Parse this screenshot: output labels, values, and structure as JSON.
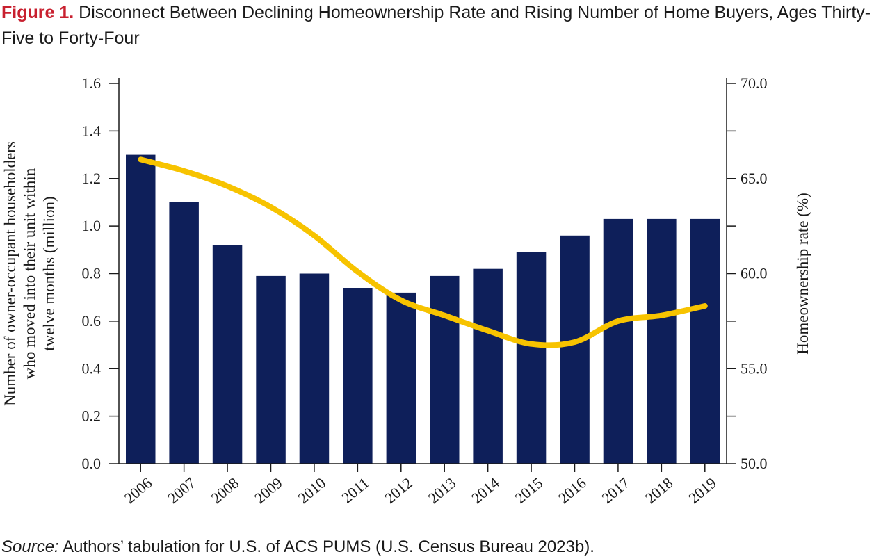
{
  "title": {
    "figure_label": "Figure 1.",
    "text": "Disconnect Between Declining Homeownership Rate and Rising Number of Home Buyers, Ages Thirty-Five to Forty-Four"
  },
  "source": {
    "label": "Source:",
    "text": "Authors’ tabulation for U.S. of ACS PUMS (U.S. Census Bureau 2023b)."
  },
  "colors": {
    "bars": "#0e1f5a",
    "line": "#f7c300",
    "axis": "#1a1a1a",
    "figure_label": "#c8202f"
  },
  "chart_data": {
    "type": "bar",
    "categories": [
      "2006",
      "2007",
      "2008",
      "2009",
      "2010",
      "2011",
      "2012",
      "2013",
      "2014",
      "2015",
      "2016",
      "2017",
      "2018",
      "2019"
    ],
    "series": [
      {
        "axis": "left",
        "chart": "bar",
        "values": [
          1.3,
          1.1,
          0.92,
          0.79,
          0.8,
          0.74,
          0.72,
          0.79,
          0.82,
          0.89,
          0.96,
          1.03,
          1.03,
          1.03
        ]
      },
      {
        "axis": "right",
        "chart": "line",
        "values": [
          66.0,
          65.4,
          64.6,
          63.5,
          62.0,
          60.1,
          58.6,
          57.8,
          57.0,
          56.3,
          56.4,
          57.5,
          57.8,
          58.3
        ]
      }
    ],
    "ylabel_left": "Number of owner-occupant householders who moved into their unit within twelve months (million)",
    "ylabel_left_lines": [
      "Number of owner-occupant householders",
      "who moved into their unit within",
      "twelve months (million)"
    ],
    "ylabel_right": "Homeownership rate (%)",
    "ylim_left": [
      0,
      1.6
    ],
    "ylim_right": [
      50,
      70
    ],
    "yticks_left": [
      "0.0",
      "0.2",
      "0.4",
      "0.6",
      "0.8",
      "1.0",
      "1.2",
      "1.4",
      "1.6"
    ],
    "yticks_right": [
      "50.0",
      "55.0",
      "60.0",
      "65.0",
      "70.0"
    ],
    "right_minor_ticks": [
      52.5,
      57.5,
      62.5,
      67.5
    ],
    "grid": false,
    "legend": "none"
  }
}
